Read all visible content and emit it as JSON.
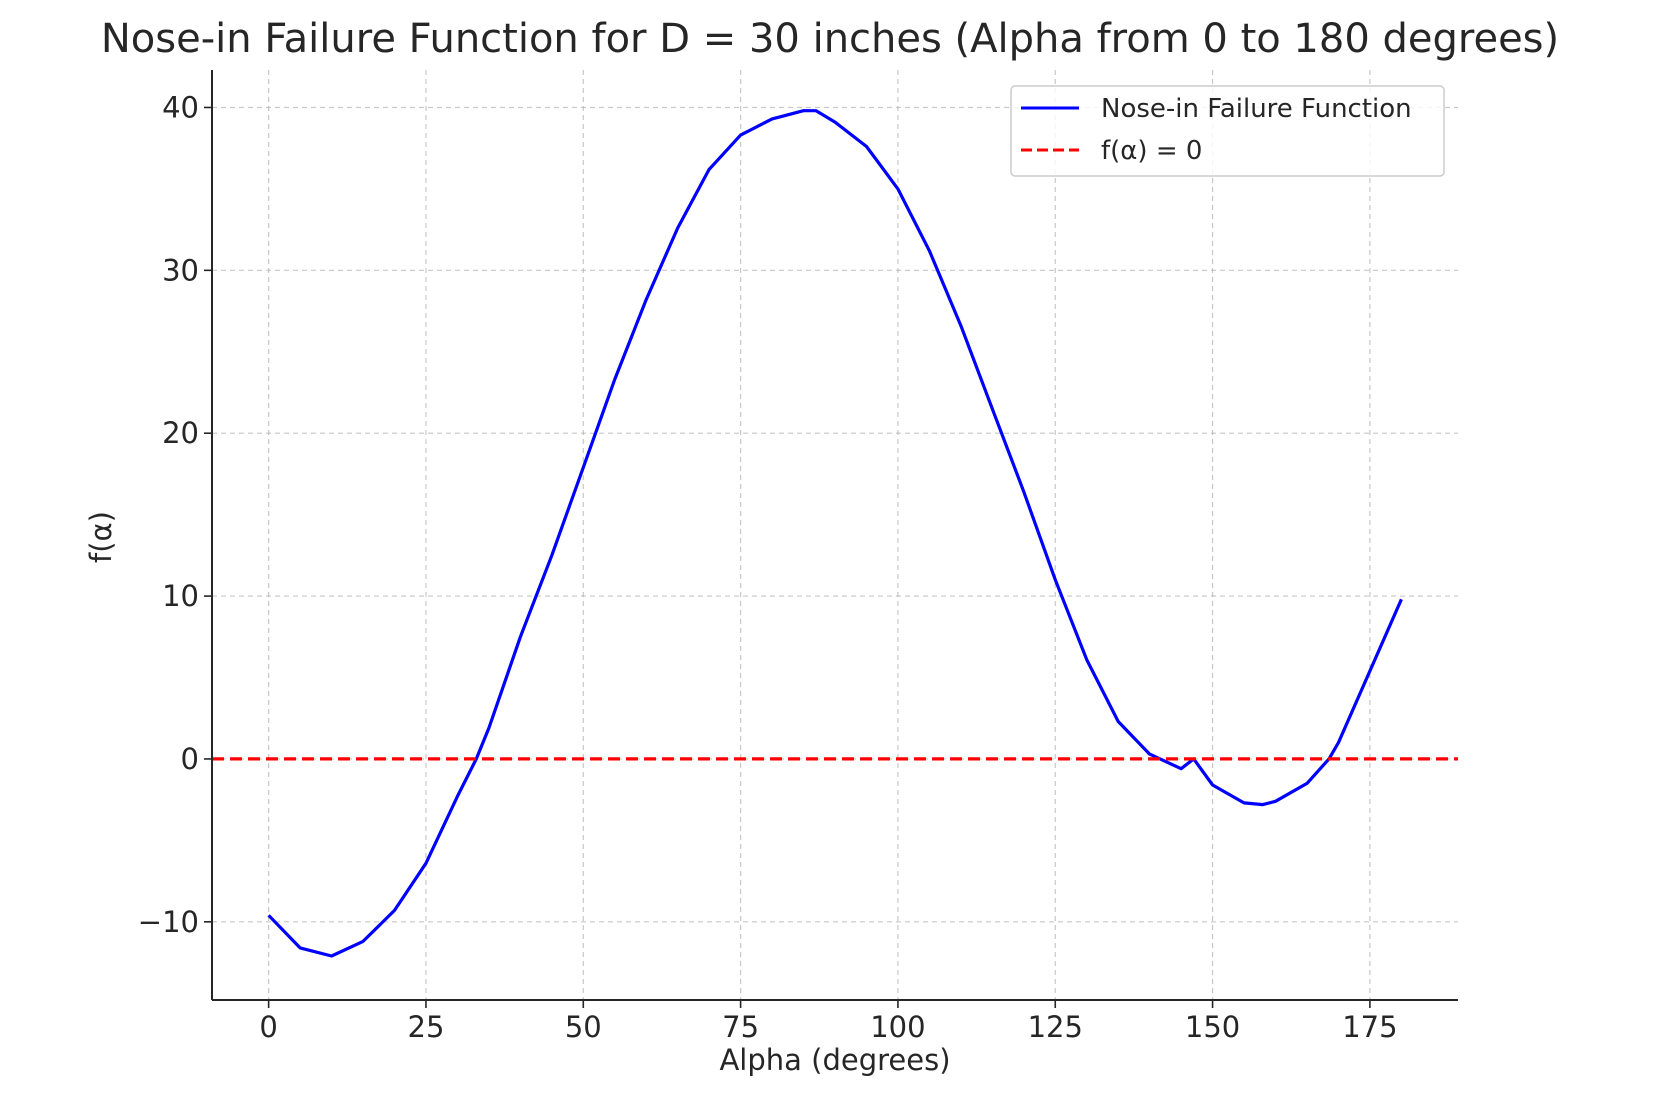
{
  "chart_data": {
    "type": "line",
    "title": "Nose-in Failure Function for D = 30 inches (Alpha from 0 to 180 degrees)",
    "xlabel": "Alpha (degrees)",
    "ylabel": "f(α)",
    "xlim": [
      -9,
      189
    ],
    "ylim": [
      -14.8,
      42.3
    ],
    "xticks": [
      0,
      25,
      50,
      75,
      100,
      125,
      150,
      175
    ],
    "yticks": [
      -10,
      0,
      10,
      20,
      30,
      40
    ],
    "ytick_labels": [
      "−10",
      "0",
      "10",
      "20",
      "30",
      "40"
    ],
    "grid": true,
    "legend_position": "top-right",
    "series": [
      {
        "name": "Nose-in Failure Function",
        "color": "#0000ff",
        "style": "solid",
        "x": [
          0,
          5,
          10,
          15,
          20,
          25,
          30,
          33,
          35,
          40,
          45,
          50,
          55,
          60,
          65,
          70,
          75,
          80,
          85,
          87,
          90,
          95,
          100,
          105,
          110,
          115,
          120,
          125,
          130,
          135,
          140,
          145,
          147,
          150,
          155,
          158,
          160,
          165,
          168.5,
          170,
          175,
          180
        ],
        "y": [
          -9.6,
          -11.6,
          -12.1,
          -11.2,
          -9.3,
          -6.4,
          -2.3,
          0.0,
          1.9,
          7.5,
          12.5,
          17.9,
          23.3,
          28.2,
          32.6,
          36.2,
          38.3,
          39.3,
          39.8,
          39.8,
          39.1,
          37.6,
          35.0,
          31.2,
          26.6,
          21.5,
          16.4,
          11.0,
          6.1,
          2.3,
          0.3,
          -0.6,
          0.0,
          -1.6,
          -2.7,
          -2.8,
          -2.6,
          -1.5,
          0.0,
          1.0,
          5.4,
          9.8
        ]
      },
      {
        "name": "f(α) = 0",
        "color": "#ff0000",
        "style": "dashed",
        "x": [
          -9,
          189
        ],
        "y": [
          0,
          0
        ]
      }
    ]
  }
}
